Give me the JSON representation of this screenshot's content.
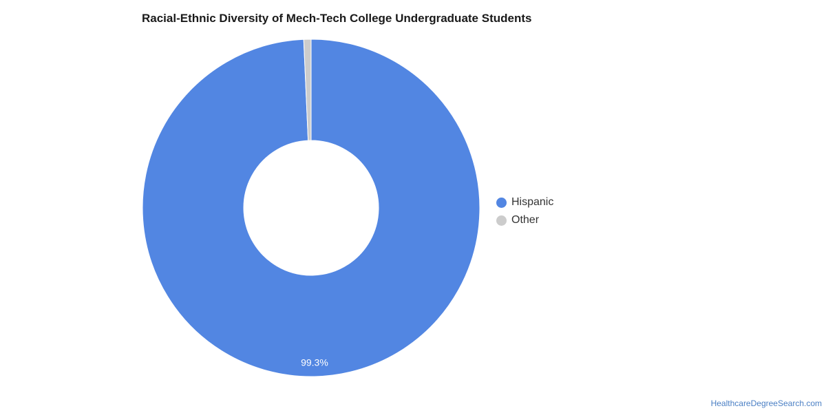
{
  "chart_data": {
    "type": "pie",
    "title": "Racial-Ethnic Diversity of Mech-Tech College Undergraduate Students",
    "categories": [
      "Hispanic",
      "Other"
    ],
    "values": [
      99.3,
      0.7
    ],
    "unit": "%",
    "data_labels": [
      "99.3%",
      ""
    ],
    "colors": [
      "#5286e2",
      "#cccccc"
    ],
    "legend_position": "right",
    "donut": true
  },
  "watermark": "HealthcareDegreeSearch.com"
}
